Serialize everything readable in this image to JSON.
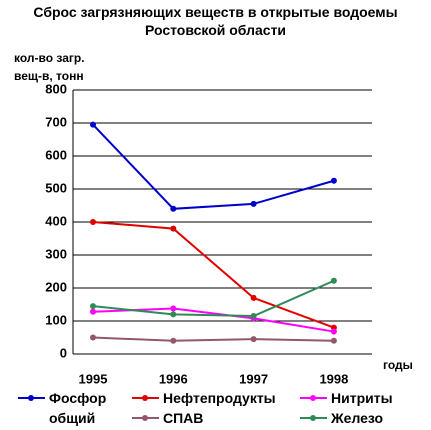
{
  "chart_data": {
    "type": "line",
    "title": "Сброс загрязняющих веществ в открытые водоемы Ростовской области",
    "y_label": "кол-во загр. вещ-в, тонн",
    "x_label": "годы",
    "categories": [
      "1995",
      "1996",
      "1997",
      "1998"
    ],
    "series": [
      {
        "name": "Фосфор общий",
        "color": "#0000cc",
        "values": [
          695,
          440,
          455,
          525
        ]
      },
      {
        "name": "Нефтепродукты",
        "color": "#e00000",
        "values": [
          400,
          380,
          170,
          80
        ]
      },
      {
        "name": "Нитриты",
        "color": "#ff00ff",
        "values": [
          128,
          138,
          108,
          68
        ]
      },
      {
        "name": "СПАВ",
        "color": "#905868",
        "values": [
          50,
          40,
          45,
          40
        ]
      },
      {
        "name": "Железо",
        "color": "#2e8b57",
        "values": [
          145,
          120,
          115,
          222
        ]
      }
    ],
    "ylim": [
      0,
      800
    ],
    "yticks": [
      0,
      100,
      200,
      300,
      400,
      500,
      600,
      700,
      800
    ],
    "grid": true
  }
}
